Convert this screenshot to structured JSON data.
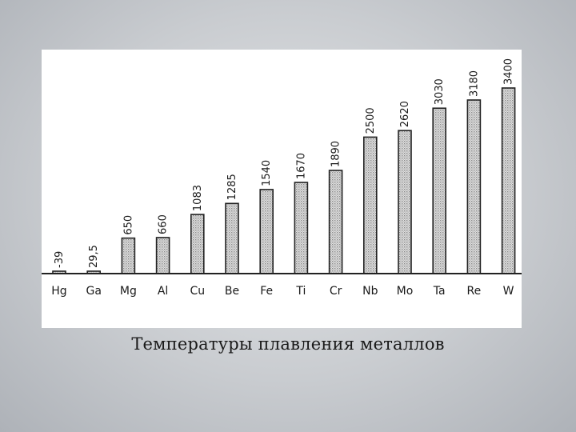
{
  "caption": "Температуры плавления металлов",
  "colors": {
    "background": "#c9ccd0",
    "panel": "#ffffff",
    "bar_fill": "#c8c8c8",
    "bar_stroke": "#222222",
    "text": "#1a1a1a"
  },
  "chart_data": {
    "type": "bar",
    "title": "",
    "xlabel": "",
    "ylabel": "",
    "categories": [
      "Hg",
      "Ga",
      "Mg",
      "Al",
      "Cu",
      "Be",
      "Fe",
      "Ti",
      "Cr",
      "Nb",
      "Mo",
      "Ta",
      "Re",
      "W"
    ],
    "values": [
      -39,
      29.5,
      650,
      660,
      1083,
      1285,
      1540,
      1670,
      1890,
      2500,
      2620,
      3030,
      3180,
      3400
    ],
    "value_labels": [
      "-39",
      "29,5",
      "650",
      "660",
      "1083",
      "1285",
      "1540",
      "1670",
      "1890",
      "2500",
      "2620",
      "3030",
      "3180",
      "3400"
    ],
    "ylim": [
      0,
      3400
    ],
    "grid": false,
    "legend": "none"
  }
}
